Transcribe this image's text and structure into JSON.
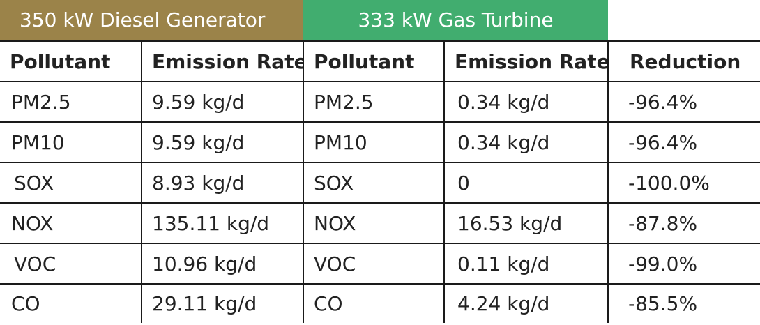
{
  "colors": {
    "diesel_header": "#9b8349",
    "gas_header": "#41ad6f",
    "border": "#1a1a1a",
    "text": "#222222"
  },
  "sections": {
    "diesel": "350 kW Diesel Generator",
    "gas": "333 kW Gas Turbine"
  },
  "columns": [
    "Pollutant",
    "Emission Rate",
    "Pollutant",
    "Emission Rate",
    "Reduction"
  ],
  "rows": [
    [
      "PM2.5",
      "9.59 kg/d",
      "PM2.5",
      "0.34 kg/d",
      "-96.4%"
    ],
    [
      "PM10",
      "9.59 kg/d",
      "PM10",
      "0.34 kg/d",
      "-96.4%"
    ],
    [
      "SOX",
      "8.93 kg/d",
      "SOX",
      "0",
      "-100.0%"
    ],
    [
      "NOX",
      "135.11 kg/d",
      "NOX",
      "16.53 kg/d",
      "-87.8%"
    ],
    [
      "VOC",
      "10.96 kg/d",
      "VOC",
      "0.11 kg/d",
      "-99.0%"
    ],
    [
      "CO",
      "29.11 kg/d",
      "CO",
      "4.24 kg/d",
      "-85.5%"
    ]
  ]
}
